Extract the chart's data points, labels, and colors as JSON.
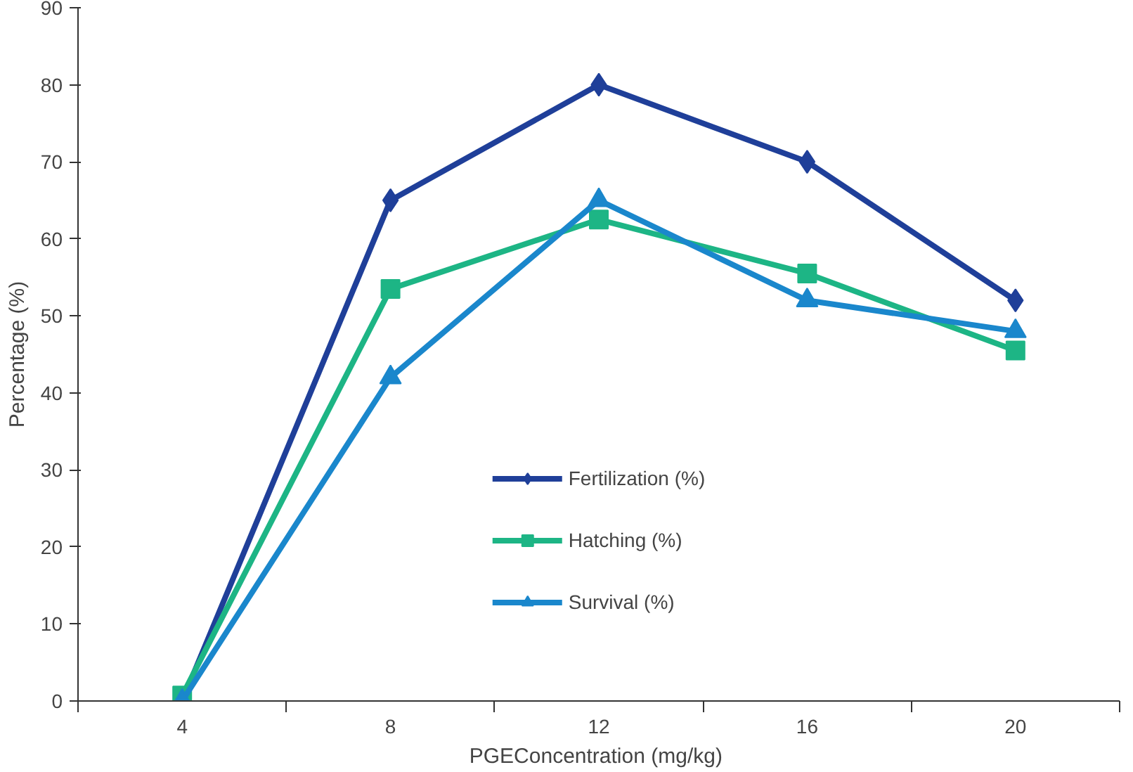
{
  "chart_data": {
    "type": "line",
    "xlabel": "PGEConcentration  (mg/kg)",
    "ylabel": "Percentage (%)",
    "categories": [
      "4",
      "8",
      "12",
      "16",
      "20"
    ],
    "series": [
      {
        "name": "Fertilization (%)",
        "color": "#1f3f99",
        "marker": "diamond",
        "values": [
          0,
          65,
          80,
          70,
          52
        ]
      },
      {
        "name": "Hatching (%)",
        "color": "#1db585",
        "marker": "square",
        "values": [
          0.7,
          53.5,
          62.5,
          55.5,
          45.5
        ]
      },
      {
        "name": "Survival (%)",
        "color": "#1a87cc",
        "marker": "triangle",
        "values": [
          0,
          42,
          65,
          52,
          48
        ]
      }
    ],
    "ylim": [
      0,
      90
    ],
    "yticks": [
      0,
      10,
      20,
      30,
      40,
      50,
      60,
      70,
      80,
      90
    ],
    "grid": false,
    "legend": "bottom",
    "line_style": "solid"
  }
}
